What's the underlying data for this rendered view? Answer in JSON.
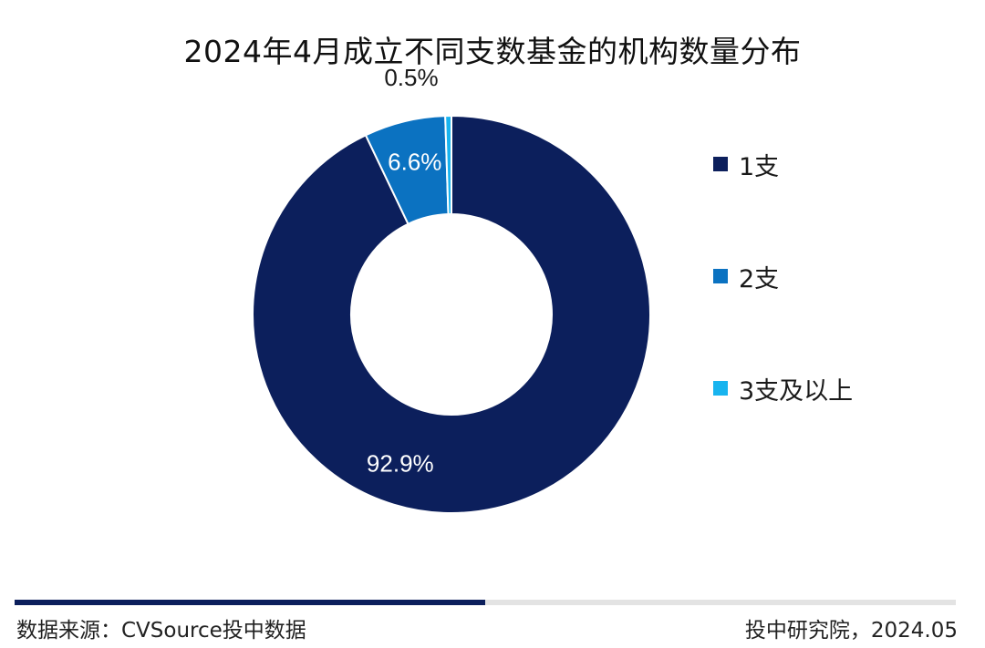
{
  "chart_data": {
    "type": "pie",
    "title": "2024年4月成立不同支数基金的机构数量分布",
    "categories": [
      "1支",
      "2支",
      "3支及以上"
    ],
    "values": [
      92.9,
      6.6,
      0.5
    ],
    "value_labels": [
      "92.9%",
      "6.6%",
      "0.5%"
    ],
    "colors": [
      "#0c1f5c",
      "#0b72c1",
      "#18b4ef"
    ],
    "donut": true,
    "legend_position": "right"
  },
  "footer": {
    "source": "数据来源：CVSource投中数据",
    "credit": "投中研究院，2024.05",
    "rule_colors": [
      "#0c1f5c",
      "#e3e3e3"
    ],
    "rule_accent_fraction": 0.5
  }
}
